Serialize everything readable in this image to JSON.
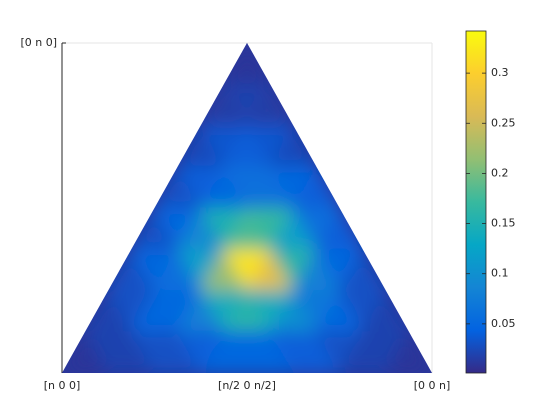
{
  "chart_data": {
    "type": "ternary-heatmap",
    "colormap": "parula",
    "xticklabels": [
      "[n 0 0]",
      "[n/2 0 n/2]",
      "[0 0 n]"
    ],
    "yticklabels": [
      "[0 n 0]"
    ],
    "rows": [
      [
        0.01
      ],
      [
        0.015,
        0.02,
        0.015
      ],
      [
        0.025,
        0.035,
        0.04,
        0.035,
        0.025
      ],
      [
        0.03,
        0.04,
        0.05,
        0.06,
        0.06,
        0.05,
        0.04
      ],
      [
        0.03,
        0.05,
        0.09,
        0.15,
        0.18,
        0.17,
        0.12,
        0.06,
        0.04
      ],
      [
        0.03,
        0.05,
        0.06,
        0.12,
        0.22,
        0.32,
        0.27,
        0.16,
        0.08,
        0.05,
        0.03
      ],
      [
        0.02,
        0.03,
        0.05,
        0.05,
        0.08,
        0.14,
        0.16,
        0.14,
        0.1,
        0.07,
        0.05,
        0.03,
        0.02
      ],
      [
        0.01,
        0.02,
        0.02,
        0.03,
        0.03,
        0.04,
        0.05,
        0.05,
        0.05,
        0.04,
        0.04,
        0.03,
        0.02,
        0.02,
        0.01
      ]
    ],
    "clim": [
      0.001,
      0.342
    ],
    "cticks": [
      0.05,
      0.1,
      0.15,
      0.2,
      0.25,
      0.3
    ]
  }
}
